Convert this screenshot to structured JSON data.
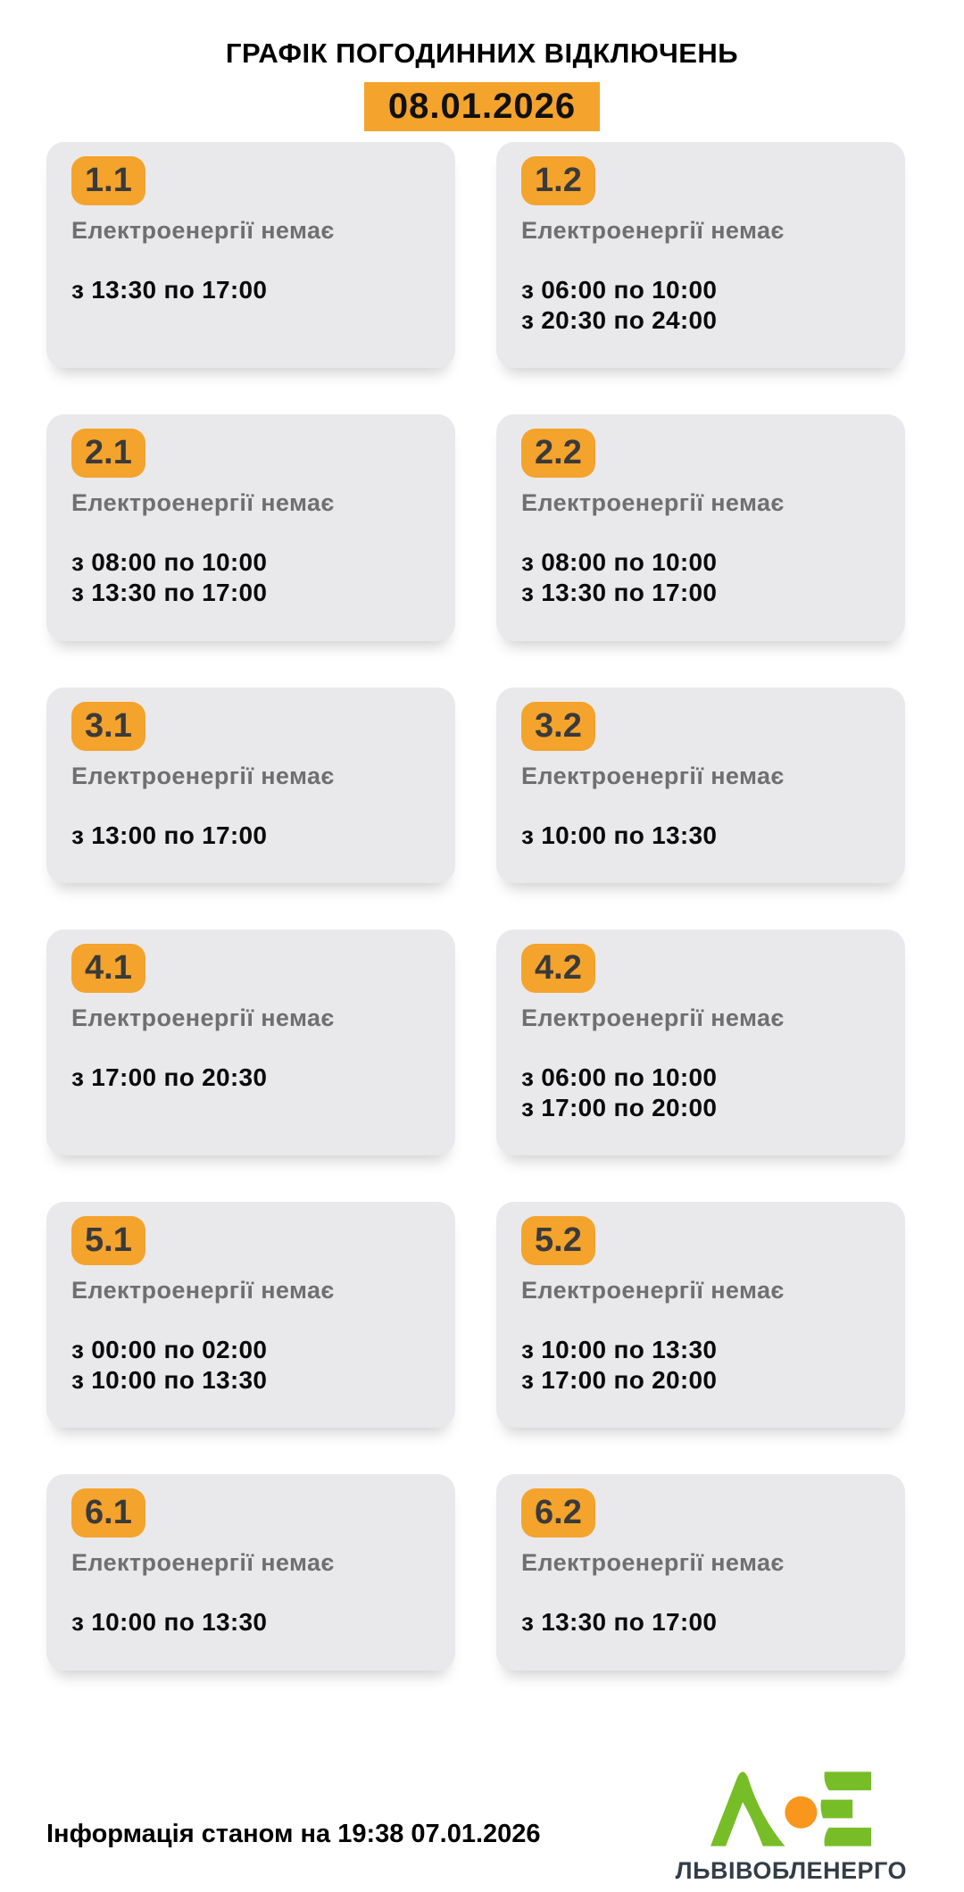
{
  "title": "ГРАФІК ПОГОДИННИХ ВІДКЛЮЧЕНЬ",
  "date": "08.01.2026",
  "status_label": "Електроенергії немає",
  "cards": [
    {
      "group": "1.1",
      "times": [
        "з 13:30 по 17:00"
      ]
    },
    {
      "group": "1.2",
      "times": [
        "з 06:00 по 10:00",
        "з 20:30 по 24:00"
      ]
    },
    {
      "group": "2.1",
      "times": [
        "з 08:00 по 10:00",
        "з 13:30 по 17:00"
      ]
    },
    {
      "group": "2.2",
      "times": [
        "з 08:00 по 10:00",
        "з 13:30 по 17:00"
      ]
    },
    {
      "group": "3.1",
      "times": [
        "з 13:00 по 17:00"
      ]
    },
    {
      "group": "3.2",
      "times": [
        "з 10:00 по 13:30"
      ]
    },
    {
      "group": "4.1",
      "times": [
        "з 17:00 по 20:30"
      ]
    },
    {
      "group": "4.2",
      "times": [
        "з 06:00 по 10:00",
        "з 17:00 по 20:00"
      ]
    },
    {
      "group": "5.1",
      "times": [
        "з 00:00 по 02:00",
        "з 10:00 по 13:30"
      ]
    },
    {
      "group": "5.2",
      "times": [
        "з 10:00 по 13:30",
        "з 17:00 по 20:00"
      ]
    },
    {
      "group": "6.1",
      "times": [
        "з 10:00 по 13:30"
      ]
    },
    {
      "group": "6.2",
      "times": [
        "з 13:30 по 17:00"
      ]
    }
  ],
  "footer": {
    "info": "Інформація станом на 19:38 07.01.2026",
    "brand": "ЛЬВІВОБЛЕНЕРГО"
  },
  "colors": {
    "accent_orange": "#F4A32C",
    "card_background": "#E9E9EB",
    "muted_text": "#6F6F72",
    "logo_green": "#77BD27",
    "logo_orange": "#F8961D",
    "brand_text": "#333E48"
  }
}
